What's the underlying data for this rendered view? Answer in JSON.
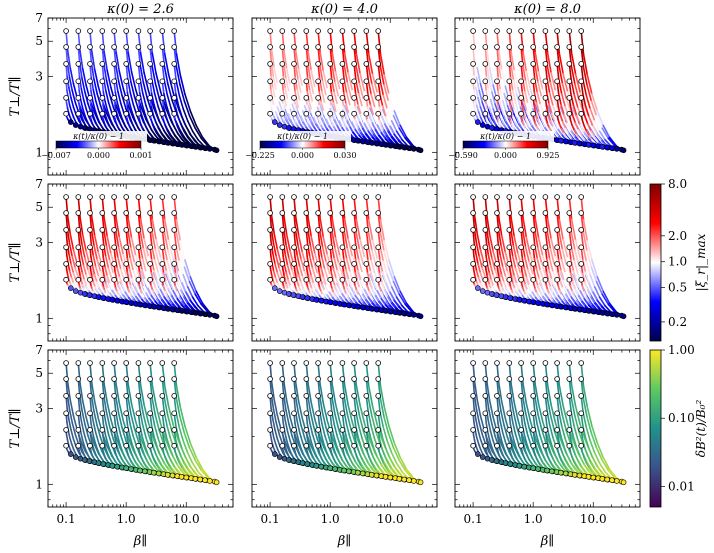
{
  "chart_data": {
    "type": "scatter",
    "title": "",
    "xlabel": "β∥",
    "ylabel": "T⊥/T∥",
    "xscale": "log",
    "yscale": "log",
    "xlim": [
      0.05,
      60
    ],
    "ylim": [
      0.72,
      7
    ],
    "x_ticks": [
      0.1,
      1.0,
      10.0
    ],
    "x_tick_labels": [
      "0.1",
      "1.0",
      "10.0"
    ],
    "y_ticks": [
      1,
      3,
      5,
      7
    ],
    "y_tick_labels": [
      "1",
      "3",
      "5",
      "7"
    ],
    "columns": [
      {
        "title": "κ(0) = 2.6",
        "kappa0": 2.6
      },
      {
        "title": "κ(0) = 4.0",
        "kappa0": 4.0
      },
      {
        "title": "κ(0) = 8.0",
        "kappa0": 8.0
      }
    ],
    "initial_beta": [
      0.1,
      0.16,
      0.25,
      0.4,
      0.63,
      1.0,
      1.6,
      2.5,
      4.0,
      6.3
    ],
    "initial_anisotropy": [
      1.75,
      2.2,
      2.8,
      3.6,
      4.6,
      5.8
    ],
    "final_beta_range": [
      0.12,
      32
    ],
    "final_anisotropy_range": [
      1.03,
      1.55
    ],
    "rows": [
      {
        "color_by": "κ(t)/κ(0) − 1",
        "colormap": "seismic",
        "insets": [
          {
            "label": "κ(t)/κ(0) − 1",
            "ticks": [
              "−0.007",
              "0.000",
              "0.001"
            ]
          },
          {
            "label": "κ(t)/κ(0) − 1",
            "ticks": [
              "−0.225",
              "0.000",
              "0.030"
            ]
          },
          {
            "label": "κ(t)/κ(0) − 1",
            "ticks": [
              "−0.590",
              "0.000",
              "0.925"
            ]
          }
        ]
      },
      {
        "color_by": "|ξ|_max",
        "colormap": "seismic-log",
        "colorbar": {
          "label": "|ξ_r|_max",
          "ticks": [
            "8.0",
            "2.0",
            "1.0",
            "0.5",
            "0.2"
          ],
          "range": [
            0.12,
            8.0
          ]
        }
      },
      {
        "color_by": "δB²(t)/B₀²",
        "colormap": "viridis-log",
        "colorbar": {
          "label": "δB²(t)/B₀²",
          "ticks": [
            "1.00",
            "0.10",
            "0.01"
          ],
          "range": [
            0.005,
            1.0
          ]
        }
      }
    ]
  },
  "colors": {
    "blue_end": "#00008b",
    "red_end": "#b00000",
    "viridis_low": "#440154",
    "viridis_high": "#fde725"
  }
}
